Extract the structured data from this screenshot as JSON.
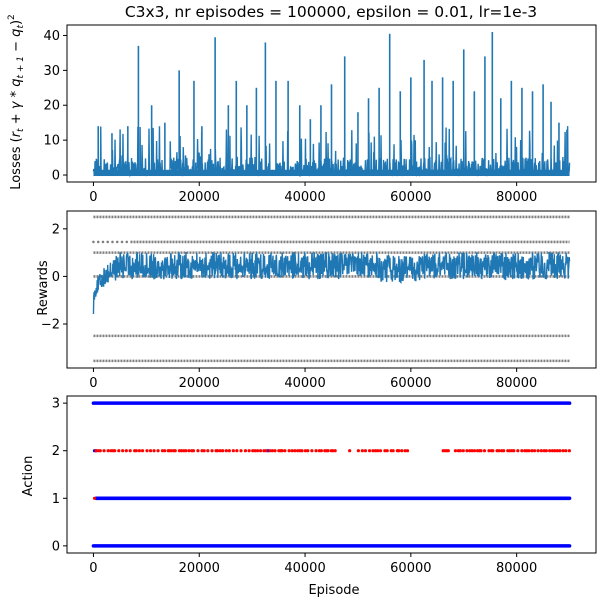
{
  "chart_data": [
    {
      "type": "line",
      "title": "C3x3, nr episodes = 100000, epsilon = 0.01, lr=1e-3",
      "ylabel_parts": [
        "Losses (",
        "r",
        "t",
        " + ",
        "γ",
        " * ",
        "q",
        "t + 1",
        " − ",
        "q",
        "t",
        ")",
        "2"
      ],
      "xlabel": "",
      "xlim": [
        -5000,
        95000
      ],
      "ylim": [
        -2,
        43
      ],
      "xticks": [
        0,
        20000,
        40000,
        60000,
        80000
      ],
      "yticks": [
        0,
        10,
        20,
        30,
        40
      ],
      "grid": false,
      "series": [
        {
          "color": "#1f77b4",
          "x_range": [
            0,
            90000
          ],
          "baseline_band": [
            0,
            5
          ],
          "typical_spike_max": 14,
          "peaks": [
            {
              "x": 900,
              "y": 14
            },
            {
              "x": 3500,
              "y": 12
            },
            {
              "x": 6500,
              "y": 14
            },
            {
              "x": 8500,
              "y": 37
            },
            {
              "x": 11000,
              "y": 20
            },
            {
              "x": 13500,
              "y": 15
            },
            {
              "x": 16200,
              "y": 30
            },
            {
              "x": 19000,
              "y": 27
            },
            {
              "x": 20500,
              "y": 14
            },
            {
              "x": 23000,
              "y": 39.5
            },
            {
              "x": 25500,
              "y": 20
            },
            {
              "x": 27000,
              "y": 27
            },
            {
              "x": 29000,
              "y": 20
            },
            {
              "x": 30800,
              "y": 25
            },
            {
              "x": 32500,
              "y": 38
            },
            {
              "x": 34500,
              "y": 27
            },
            {
              "x": 36800,
              "y": 27
            },
            {
              "x": 39000,
              "y": 20
            },
            {
              "x": 41000,
              "y": 16
            },
            {
              "x": 43000,
              "y": 20
            },
            {
              "x": 45000,
              "y": 26
            },
            {
              "x": 47500,
              "y": 34
            },
            {
              "x": 50000,
              "y": 18
            },
            {
              "x": 52000,
              "y": 22
            },
            {
              "x": 54000,
              "y": 25
            },
            {
              "x": 56000,
              "y": 40.5
            },
            {
              "x": 58000,
              "y": 24
            },
            {
              "x": 60000,
              "y": 28
            },
            {
              "x": 62500,
              "y": 33
            },
            {
              "x": 64000,
              "y": 27
            },
            {
              "x": 66000,
              "y": 28
            },
            {
              "x": 68000,
              "y": 27
            },
            {
              "x": 70000,
              "y": 36
            },
            {
              "x": 72000,
              "y": 24
            },
            {
              "x": 74000,
              "y": 34
            },
            {
              "x": 75400,
              "y": 41
            },
            {
              "x": 77000,
              "y": 22
            },
            {
              "x": 79000,
              "y": 27
            },
            {
              "x": 81000,
              "y": 25
            },
            {
              "x": 83000,
              "y": 24
            },
            {
              "x": 85000,
              "y": 26
            },
            {
              "x": 86500,
              "y": 21
            },
            {
              "x": 88000,
              "y": 15
            },
            {
              "x": 89500,
              "y": 13
            }
          ]
        }
      ]
    },
    {
      "type": "line",
      "title": "",
      "xlabel": "",
      "ylabel": "Rewards",
      "xlim": [
        -5000,
        95000
      ],
      "ylim": [
        -3.85,
        2.75
      ],
      "xticks": [
        0,
        20000,
        40000,
        60000,
        80000
      ],
      "yticks": [
        -2,
        0,
        2
      ],
      "grid": false,
      "scatter_levels": {
        "color": "#808080",
        "x_range": [
          0,
          90000
        ],
        "values": [
          2.5,
          1.45,
          1.0,
          0.0,
          -2.5,
          -3.55
        ],
        "sparse_start": {
          "1.45": 7000
        }
      },
      "series": [
        {
          "color": "#1f77b4",
          "x_range": [
            0,
            90000
          ],
          "start_value": -1.3,
          "settle_by_x": 5000,
          "plateau_center": 0.45,
          "plateau_band": [
            -0.1,
            1.05
          ],
          "dip_region": {
            "x": [
              54000,
              62000
            ],
            "center": 0.32
          }
        }
      ]
    },
    {
      "type": "scatter",
      "title": "",
      "xlabel": "Episode",
      "ylabel": "Action",
      "xlim": [
        -5000,
        95000
      ],
      "ylim": [
        -0.15,
        3.15
      ],
      "xticks": [
        0,
        20000,
        40000,
        60000,
        80000
      ],
      "yticks": [
        0,
        1,
        2,
        3
      ],
      "grid": false,
      "series": [
        {
          "color": "#0000ff",
          "y": 3,
          "x_range": [
            0,
            90000
          ],
          "density": "dense"
        },
        {
          "color": "#0000ff",
          "y": 1,
          "x_range": [
            500,
            90000
          ],
          "density": "dense"
        },
        {
          "color": "#0000ff",
          "y": 0,
          "x_range": [
            0,
            90000
          ],
          "density": "dense"
        },
        {
          "color": "#0000ff",
          "y": 2,
          "x": [
            200,
            500,
            33000
          ],
          "density": "sparse"
        },
        {
          "color": "#ff0000",
          "y": 2,
          "x_range": [
            500,
            90000
          ],
          "density": "sparse",
          "gaps": [
            [
              46000,
              50000
            ],
            [
              60000,
              68000
            ]
          ]
        },
        {
          "color": "#ff0000",
          "y": 1,
          "x": [
            200
          ],
          "density": "sparse"
        }
      ]
    }
  ]
}
